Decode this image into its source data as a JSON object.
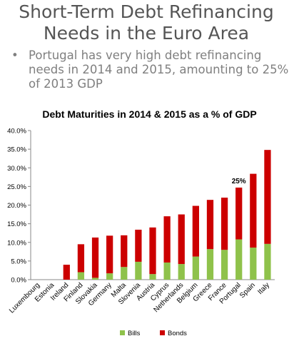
{
  "slide": {
    "title_line1": "Short-Term Debt Refinancing",
    "title_line2": "Needs in the Euro Area",
    "bullet_symbol": "•",
    "bullet_text": "Portugal has very high debt refinancing needs in 2014 and 2015, amounting to 25% of 2013 GDP"
  },
  "chart_data": {
    "type": "bar",
    "stacked": true,
    "title": "Debt Maturities in 2014 & 2015 as a % of GDP",
    "xlabel": "",
    "ylabel": "",
    "ylim": [
      0,
      40
    ],
    "yticks": [
      0,
      5,
      10,
      15,
      20,
      25,
      30,
      35,
      40
    ],
    "ytick_labels": [
      "0.0%",
      "5.0%",
      "10.0%",
      "15.0%",
      "20.0%",
      "25.0%",
      "30.0%",
      "35.0%",
      "40.0%"
    ],
    "categories": [
      "Luxembourg",
      "Estonia",
      "Ireland",
      "Finland",
      "Slovakia",
      "Germany",
      "Malta",
      "Slovenia",
      "Austria",
      "Cyprus",
      "Netherlands",
      "Belgium",
      "Greece",
      "France",
      "Portugal",
      "Spain",
      "Italy"
    ],
    "series": [
      {
        "name": "Bills",
        "color": "#8fc24b",
        "values": [
          0,
          0,
          0,
          2.0,
          0.5,
          1.7,
          3.4,
          4.8,
          1.5,
          4.6,
          4.2,
          6.2,
          8.2,
          8.0,
          10.8,
          8.6,
          9.6
        ]
      },
      {
        "name": "Bonds",
        "color": "#cc0000",
        "values": [
          0,
          0,
          4.0,
          7.5,
          10.8,
          10.1,
          8.5,
          8.6,
          12.5,
          12.4,
          13.3,
          13.6,
          13.2,
          14.0,
          13.9,
          19.8,
          25.2
        ]
      }
    ],
    "annotation": {
      "category": "Portugal",
      "text": "25%"
    },
    "grid": false,
    "legend_position": "bottom"
  }
}
